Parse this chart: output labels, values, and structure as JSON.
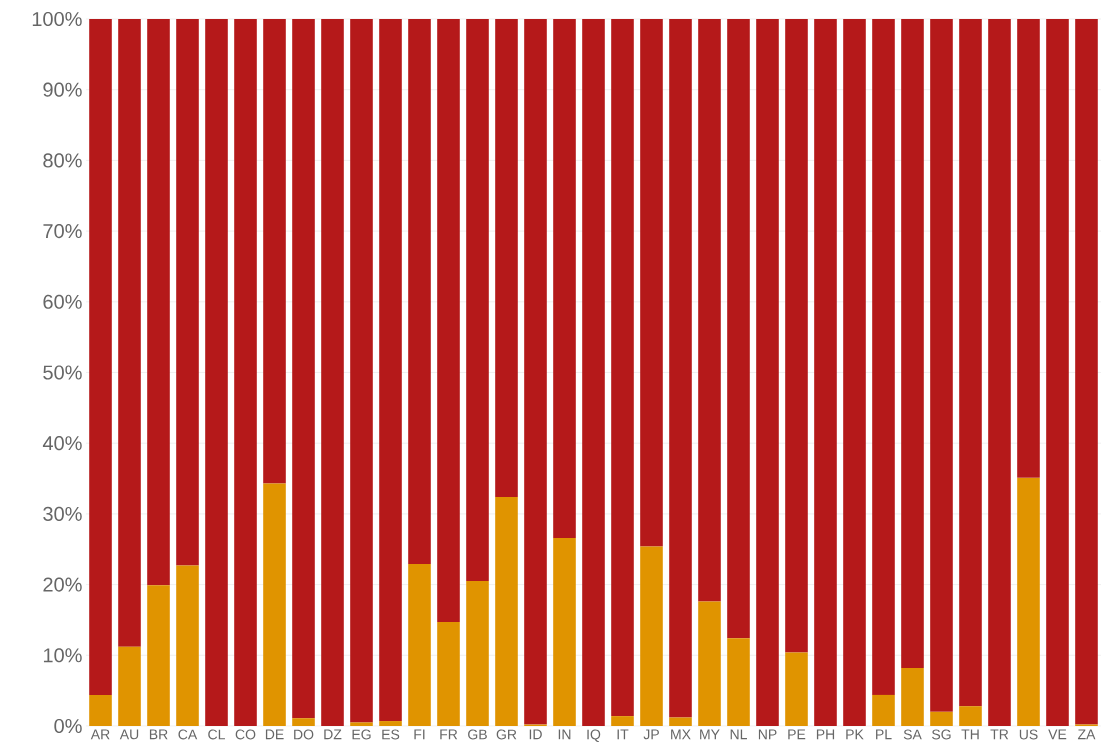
{
  "chart_data": {
    "type": "bar",
    "stacked": true,
    "grid": "y",
    "categories": [
      "AR",
      "AU",
      "BR",
      "CA",
      "CL",
      "CO",
      "DE",
      "DO",
      "DZ",
      "EG",
      "ES",
      "FI",
      "FR",
      "GB",
      "GR",
      "ID",
      "IN",
      "IQ",
      "IT",
      "JP",
      "MX",
      "MY",
      "NL",
      "NP",
      "PE",
      "PH",
      "PK",
      "PL",
      "SA",
      "SG",
      "TH",
      "TR",
      "US",
      "VE",
      "ZA"
    ],
    "series": [
      {
        "color": "#e09400",
        "values": [
          4.4,
          11.2,
          19.9,
          22.7,
          0,
          0,
          34.3,
          1.1,
          0,
          0.5,
          0.7,
          22.9,
          14.7,
          20.5,
          32.4,
          0.2,
          26.6,
          0,
          1.4,
          25.4,
          1.2,
          17.6,
          12.4,
          0,
          10.4,
          0,
          0,
          4.4,
          8.2,
          2.0,
          2.8,
          0,
          35.1,
          0,
          0.2
        ]
      },
      {
        "color": "#b5191a",
        "values": [
          95.6,
          88.8,
          80.1,
          77.3,
          100,
          100,
          65.7,
          98.9,
          100,
          99.5,
          99.3,
          77.1,
          85.3,
          79.5,
          67.6,
          99.8,
          73.4,
          100,
          98.6,
          74.6,
          98.8,
          82.4,
          87.6,
          100,
          89.6,
          100,
          100,
          95.6,
          91.8,
          98.0,
          97.2,
          100,
          64.9,
          100,
          99.8
        ]
      }
    ],
    "ylim": [
      0,
      100
    ],
    "yticks": [
      {
        "value": 0,
        "label": "0%"
      },
      {
        "value": 10,
        "label": "10%"
      },
      {
        "value": 20,
        "label": "20%"
      },
      {
        "value": 30,
        "label": "30%"
      },
      {
        "value": 40,
        "label": "40%"
      },
      {
        "value": 50,
        "label": "50%"
      },
      {
        "value": 60,
        "label": "60%"
      },
      {
        "value": 70,
        "label": "70%"
      },
      {
        "value": 80,
        "label": "80%"
      },
      {
        "value": 90,
        "label": "90%"
      },
      {
        "value": 100,
        "label": "100%"
      }
    ]
  }
}
